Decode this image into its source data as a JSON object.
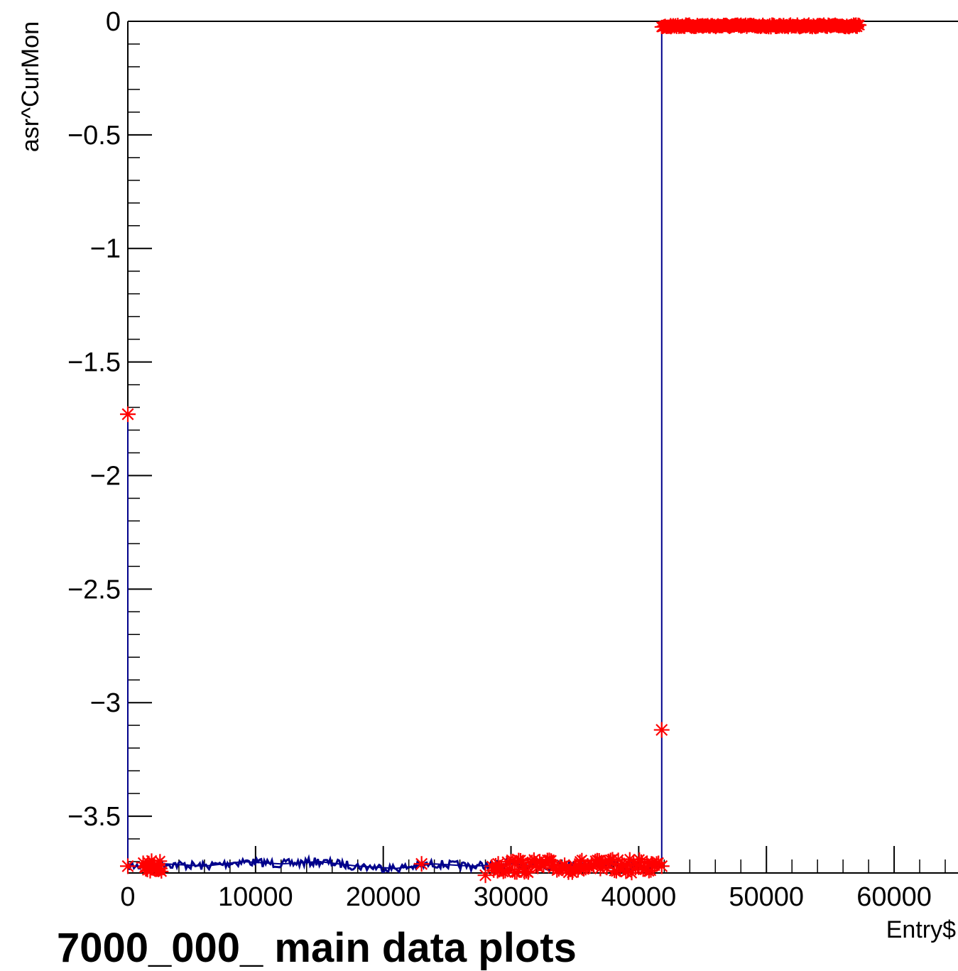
{
  "chart_data": {
    "type": "line",
    "title": "",
    "xlabel": "Entry$",
    "ylabel": "asr^CurMon",
    "xlim": [
      0,
      65000
    ],
    "ylim": [
      -3.75,
      0
    ],
    "x_ticks": [
      0,
      10000,
      20000,
      30000,
      40000,
      50000,
      60000
    ],
    "x_tick_labels": [
      "0",
      "10000",
      "20000",
      "30000",
      "40000",
      "50000",
      "60000"
    ],
    "y_ticks": [
      0,
      -0.5,
      -1,
      -1.5,
      -2,
      -2.5,
      -3,
      -3.5
    ],
    "y_tick_labels": [
      "0",
      "−0.5",
      "−1",
      "−1.5",
      "−2",
      "−2.5",
      "−3",
      "−3.5"
    ],
    "grid": false,
    "series": [
      {
        "color": "#00008b",
        "style": "line",
        "x": [
          0,
          0,
          1000,
          3000,
          6000,
          9000,
          12000,
          15000,
          18000,
          21000,
          24000,
          27000,
          30000,
          33000,
          36000,
          39000,
          41800,
          41800,
          57500
        ],
        "y": [
          -1.73,
          -3.72,
          -3.72,
          -3.71,
          -3.72,
          -3.7,
          -3.71,
          -3.7,
          -3.72,
          -3.73,
          -3.71,
          -3.72,
          -3.71,
          -3.72,
          -3.71,
          -3.72,
          -3.72,
          -0.02,
          -0.02
        ]
      },
      {
        "color": "#ff0000",
        "style": "markers",
        "marker": "asterisk",
        "x": [
          0,
          0,
          1500,
          2500,
          23000,
          28000,
          29000,
          31000,
          33000,
          35000,
          37000,
          39000,
          41000,
          41800,
          41800,
          42500,
          45000,
          48000,
          51000,
          54000,
          57000
        ],
        "y": [
          -1.73,
          -3.72,
          -3.72,
          -3.73,
          -3.71,
          -3.76,
          -3.71,
          -3.72,
          -3.7,
          -3.72,
          -3.73,
          -3.72,
          -3.71,
          -3.12,
          -3.72,
          -0.02,
          -0.02,
          -0.02,
          -0.02,
          -0.02,
          -0.02
        ]
      }
    ]
  },
  "footer_title": "7000_000_ main data plots"
}
